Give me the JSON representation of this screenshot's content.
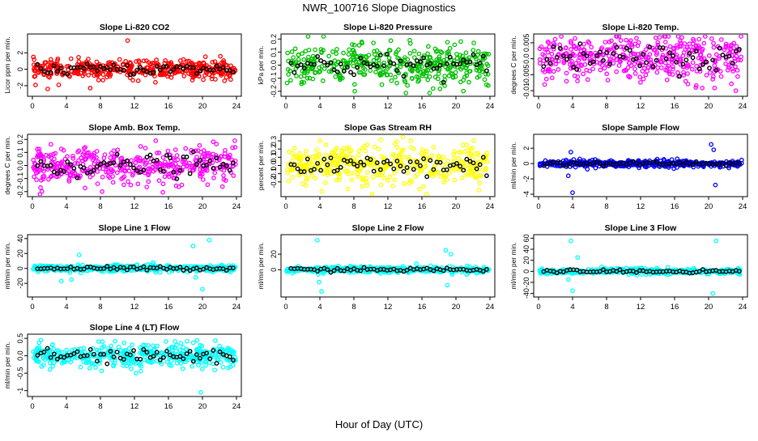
{
  "title": "NWR_100716  Slope Diagnostics",
  "xlabel": "Hour of Day (UTC)",
  "x_ticks": [
    0,
    4,
    8,
    12,
    16,
    20,
    24
  ],
  "chart_data": [
    {
      "type": "scatter",
      "title": "Slope Li-820 CO2",
      "ylabel": "Licor ppm per min.",
      "xlim": [
        0,
        24
      ],
      "ylim": [
        -3,
        4
      ],
      "yticks": [
        -2,
        0,
        2
      ],
      "color": "#ff0000",
      "spread": 0.55,
      "outliers": [
        [
          11.2,
          3.5
        ],
        [
          6.8,
          -2.3
        ],
        [
          3.1,
          -1.9
        ],
        [
          1.8,
          -2.4
        ]
      ]
    },
    {
      "type": "scatter",
      "title": "Slope Li-820 Pressure",
      "ylabel": "kPa per min.",
      "xlim": [
        0,
        24
      ],
      "ylim": [
        -0.22,
        0.22
      ],
      "yticks": [
        -0.2,
        -0.1,
        0.0,
        0.1,
        0.2
      ],
      "color": "#00c000",
      "spread": 0.075,
      "outliers": [
        [
          8.1,
          -0.2
        ],
        [
          10.3,
          0.17
        ],
        [
          22.1,
          0.17
        ],
        [
          23.6,
          -0.15
        ]
      ]
    },
    {
      "type": "scatter",
      "title": "Slope Li-820 Temp.",
      "ylabel": "degrees C per min.",
      "xlim": [
        0,
        24
      ],
      "ylim": [
        -0.011,
        0.007
      ],
      "yticks": [
        -0.01,
        -0.005,
        0.0,
        0.005
      ],
      "color": "#ff00ff",
      "spread": 0.0035,
      "outliers": [
        [
          21.5,
          0.006
        ],
        [
          23.2,
          -0.01
        ],
        [
          18.5,
          -0.009
        ]
      ]
    },
    {
      "type": "scatter",
      "title": "Slope Amb. Box Temp.",
      "ylabel": "degrees C per min.",
      "xlim": [
        0,
        24
      ],
      "ylim": [
        -0.22,
        0.22
      ],
      "yticks": [
        -0.2,
        -0.1,
        0.0,
        0.1,
        0.2
      ],
      "color": "#ff00ff",
      "spread": 0.07,
      "outliers": [
        [
          8.2,
          -0.2
        ],
        [
          23.8,
          0.19
        ]
      ]
    },
    {
      "type": "scatter",
      "title": "Slope Gas Stream RH",
      "ylabel": "percent per min.",
      "xlim": [
        0,
        24
      ],
      "ylim": [
        -0.35,
        0.35
      ],
      "yticks": [
        -0.2,
        -0.1,
        0.0,
        0.1,
        0.2,
        0.3
      ],
      "color": "#ffff00",
      "spread": 0.12,
      "outliers": [
        [
          4.0,
          0.3
        ],
        [
          22.7,
          -0.3
        ]
      ]
    },
    {
      "type": "scatter",
      "title": "Slope Sample Flow",
      "ylabel": "ml/min per min.",
      "xlim": [
        0,
        24
      ],
      "ylim": [
        -4,
        3.5
      ],
      "yticks": [
        -4,
        -2,
        0,
        2
      ],
      "color": "#0000ff",
      "spread": 0.22,
      "outliers": [
        [
          4.0,
          -3.8
        ],
        [
          3.8,
          1.5
        ],
        [
          20.3,
          2.5
        ],
        [
          20.6,
          1.8
        ],
        [
          20.8,
          -2.8
        ],
        [
          3.5,
          -1.6
        ]
      ]
    },
    {
      "type": "scatter",
      "title": "Slope Line 1 Flow",
      "ylabel": "ml/min per min.",
      "xlim": [
        0,
        24
      ],
      "ylim": [
        -35,
        42
      ],
      "yticks": [
        -20,
        0,
        20,
        40
      ],
      "color": "#00ffff",
      "spread": 2.2,
      "outliers": [
        [
          18.9,
          30
        ],
        [
          20.8,
          38
        ],
        [
          20.0,
          -28
        ],
        [
          5.5,
          18
        ],
        [
          4.6,
          -15
        ],
        [
          3.4,
          -17
        ],
        [
          19.2,
          -12
        ]
      ]
    },
    {
      "type": "scatter",
      "title": "Slope Line 2 Flow",
      "ylabel": "ml/min per min.",
      "xlim": [
        0,
        24
      ],
      "ylim": [
        -32,
        42
      ],
      "yticks": [
        0,
        20
      ],
      "color": "#00ffff",
      "spread": 2.0,
      "outliers": [
        [
          3.7,
          38
        ],
        [
          4.2,
          -28
        ],
        [
          18.8,
          25
        ],
        [
          19.4,
          20
        ],
        [
          19.0,
          -20
        ],
        [
          3.9,
          -16
        ]
      ]
    },
    {
      "type": "scatter",
      "title": "Slope Line 3 Flow",
      "ylabel": "ml/min per min.",
      "xlim": [
        0,
        24
      ],
      "ylim": [
        -42,
        62
      ],
      "yticks": [
        -40,
        -20,
        0,
        20,
        40,
        60
      ],
      "color": "#00ffff",
      "spread": 2.5,
      "outliers": [
        [
          3.8,
          55
        ],
        [
          20.9,
          55
        ],
        [
          4.0,
          -35
        ],
        [
          20.5,
          -40
        ],
        [
          4.6,
          25
        ],
        [
          3.5,
          -15
        ]
      ]
    },
    {
      "type": "scatter",
      "title": "Slope Line 4 (LT) Flow",
      "ylabel": "ml/min per min.",
      "xlim": [
        0,
        24
      ],
      "ylim": [
        -1.1,
        0.55
      ],
      "yticks": [
        -1.0,
        -0.5,
        0.0,
        0.5
      ],
      "color": "#00ffff",
      "spread": 0.16,
      "outliers": [
        [
          19.8,
          -1.05
        ],
        [
          12.2,
          -0.5
        ],
        [
          1.0,
          0.45
        ]
      ]
    }
  ]
}
